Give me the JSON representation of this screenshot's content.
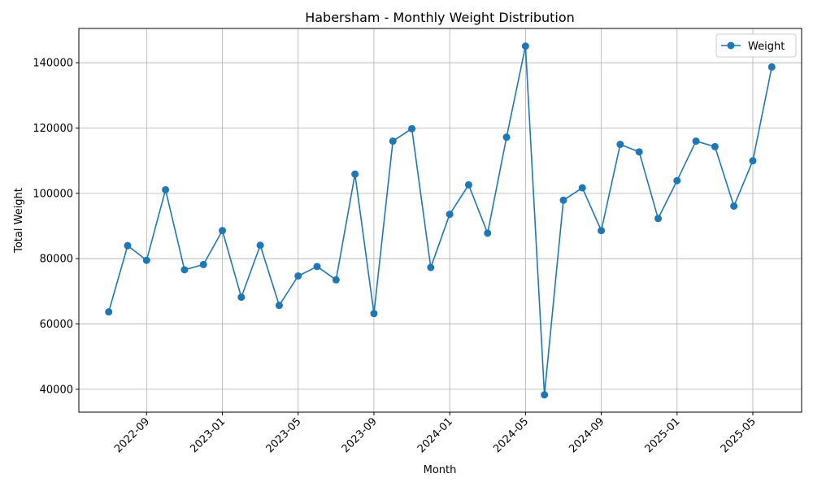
{
  "chart_data": {
    "type": "line",
    "title": "Habersham - Monthly Weight Distribution",
    "xlabel": "Month",
    "ylabel": "Total Weight",
    "x_ticks": [
      "2022-09",
      "2023-01",
      "2023-05",
      "2023-09",
      "2024-01",
      "2024-05",
      "2024-09",
      "2025-01",
      "2025-05"
    ],
    "y_ticks": [
      "40000",
      "60000",
      "80000",
      "100000",
      "120000",
      "140000"
    ],
    "ylim": [
      33000,
      150500
    ],
    "grid": true,
    "legend_position": "top-right",
    "series": [
      {
        "name": "Weight",
        "color": "#1f77b4",
        "marker": "circle",
        "points": [
          {
            "x": "2022-07",
            "y": 63700
          },
          {
            "x": "2022-08",
            "y": 84000
          },
          {
            "x": "2022-09",
            "y": 79500
          },
          {
            "x": "2022-10",
            "y": 101100
          },
          {
            "x": "2022-11",
            "y": 76600
          },
          {
            "x": "2022-12",
            "y": 78200
          },
          {
            "x": "2023-01",
            "y": 88600
          },
          {
            "x": "2023-02",
            "y": 68200
          },
          {
            "x": "2023-03",
            "y": 84100
          },
          {
            "x": "2023-04",
            "y": 65700
          },
          {
            "x": "2023-05",
            "y": 74700
          },
          {
            "x": "2023-06",
            "y": 77600
          },
          {
            "x": "2023-07",
            "y": 73500
          },
          {
            "x": "2023-08",
            "y": 105900
          },
          {
            "x": "2023-09",
            "y": 63200
          },
          {
            "x": "2023-10",
            "y": 116000
          },
          {
            "x": "2023-11",
            "y": 119800
          },
          {
            "x": "2023-12",
            "y": 77300
          },
          {
            "x": "2024-01",
            "y": 93600
          },
          {
            "x": "2024-02",
            "y": 102600
          },
          {
            "x": "2024-03",
            "y": 87800
          },
          {
            "x": "2024-04",
            "y": 117200
          },
          {
            "x": "2024-05",
            "y": 145100
          },
          {
            "x": "2024-06",
            "y": 38300
          },
          {
            "x": "2024-07",
            "y": 97900
          },
          {
            "x": "2024-08",
            "y": 101700
          },
          {
            "x": "2024-09",
            "y": 88600
          },
          {
            "x": "2024-10",
            "y": 115000
          },
          {
            "x": "2024-11",
            "y": 112700
          },
          {
            "x": "2024-12",
            "y": 92300
          },
          {
            "x": "2025-01",
            "y": 103900
          },
          {
            "x": "2025-02",
            "y": 116000
          },
          {
            "x": "2025-03",
            "y": 114300
          },
          {
            "x": "2025-04",
            "y": 96100
          },
          {
            "x": "2025-05",
            "y": 110000
          },
          {
            "x": "2025-06",
            "y": 138700
          }
        ]
      }
    ]
  }
}
